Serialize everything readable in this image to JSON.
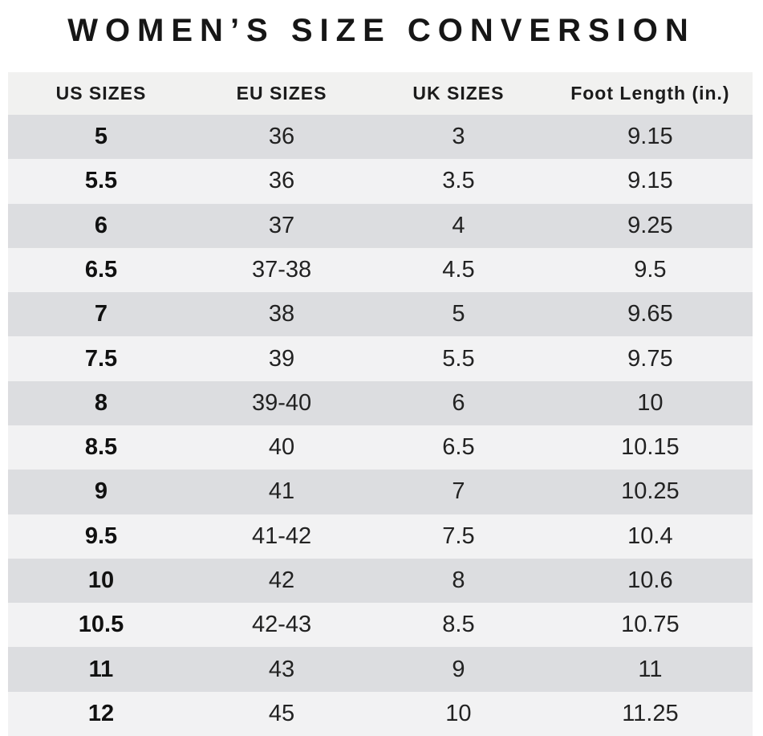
{
  "title": "WOMEN’S SIZE CONVERSION",
  "colors": {
    "background": "#ffffff",
    "header_row_bg": "#f1f1f0",
    "stripe_dark": "#dcdde0",
    "stripe_light": "#f2f2f3",
    "text": "#1b1b1b"
  },
  "table": {
    "headers": [
      "US SIZES",
      "EU SIZES",
      "UK SIZES",
      "Foot Length (in.)"
    ],
    "rows": [
      [
        "5",
        "36",
        "3",
        "9.15"
      ],
      [
        "5.5",
        "36",
        "3.5",
        "9.15"
      ],
      [
        "6",
        "37",
        "4",
        "9.25"
      ],
      [
        "6.5",
        "37-38",
        "4.5",
        "9.5"
      ],
      [
        "7",
        "38",
        "5",
        "9.65"
      ],
      [
        "7.5",
        "39",
        "5.5",
        "9.75"
      ],
      [
        "8",
        "39-40",
        "6",
        "10"
      ],
      [
        "8.5",
        "40",
        "6.5",
        "10.15"
      ],
      [
        "9",
        "41",
        "7",
        "10.25"
      ],
      [
        "9.5",
        "41-42",
        "7.5",
        "10.4"
      ],
      [
        "10",
        "42",
        "8",
        "10.6"
      ],
      [
        "10.5",
        "42-43",
        "8.5",
        "10.75"
      ],
      [
        "11",
        "43",
        "9",
        "11"
      ],
      [
        "12",
        "45",
        "10",
        "11.25"
      ]
    ]
  },
  "chart_data": {
    "type": "table",
    "title": "WOMEN’S SIZE CONVERSION",
    "columns": [
      "US SIZES",
      "EU SIZES",
      "UK SIZES",
      "Foot Length (in.)"
    ],
    "rows": [
      [
        "5",
        "36",
        "3",
        "9.15"
      ],
      [
        "5.5",
        "36",
        "3.5",
        "9.15"
      ],
      [
        "6",
        "37",
        "4",
        "9.25"
      ],
      [
        "6.5",
        "37-38",
        "4.5",
        "9.5"
      ],
      [
        "7",
        "38",
        "5",
        "9.65"
      ],
      [
        "7.5",
        "39",
        "5.5",
        "9.75"
      ],
      [
        "8",
        "39-40",
        "6",
        "10"
      ],
      [
        "8.5",
        "40",
        "6.5",
        "10.15"
      ],
      [
        "9",
        "41",
        "7",
        "10.25"
      ],
      [
        "9.5",
        "41-42",
        "7.5",
        "10.4"
      ],
      [
        "10",
        "42",
        "8",
        "10.6"
      ],
      [
        "10.5",
        "42-43",
        "8.5",
        "10.75"
      ],
      [
        "11",
        "43",
        "9",
        "11"
      ],
      [
        "12",
        "45",
        "10",
        "11.25"
      ]
    ],
    "layout": {
      "striped": true,
      "stripe_start": "dark",
      "grid": false,
      "alignment": "center"
    }
  }
}
